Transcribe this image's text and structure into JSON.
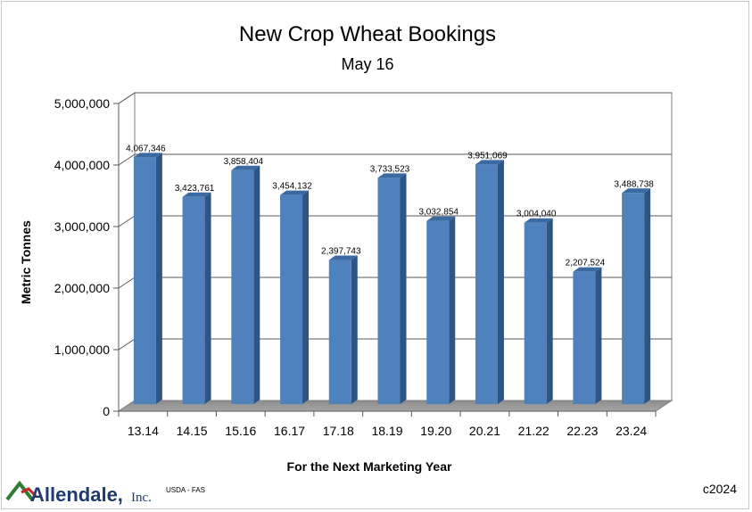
{
  "chart_data": {
    "type": "bar",
    "title": "New Crop Wheat Bookings",
    "subtitle": "May 16",
    "xlabel": "For the Next Marketing Year",
    "ylabel": "Metric Tonnes",
    "categories": [
      "13.14",
      "14.15",
      "15.16",
      "16.17",
      "17.18",
      "18.19",
      "19.20",
      "20.21",
      "21.22",
      "22.23",
      "23.24"
    ],
    "values": [
      4067346,
      3423761,
      3858404,
      3454132,
      2397743,
      3733523,
      3032854,
      3951069,
      3004040,
      2207524,
      3488738
    ],
    "value_labels": [
      "4,067,346",
      "3,423,761",
      "3,858,404",
      "3,454,132",
      "2,397,743",
      "3,733,523",
      "3,032,854",
      "3,951,069",
      "3,004,040",
      "2,207,524",
      "3,488,738"
    ],
    "ylim": [
      0,
      5000000
    ],
    "yticks": [
      0,
      1000000,
      2000000,
      3000000,
      4000000,
      5000000
    ],
    "ytick_labels": [
      "0",
      "1,000,000",
      "2,000,000",
      "3,000,000",
      "4,000,000",
      "5,000,000"
    ],
    "grid": true,
    "legend": "none",
    "bar_color": "#4f81bd"
  },
  "footer": {
    "logo_name": "Allendale,",
    "logo_inc": "Inc.",
    "source": "USDA - FAS",
    "copyright": "c2024"
  }
}
